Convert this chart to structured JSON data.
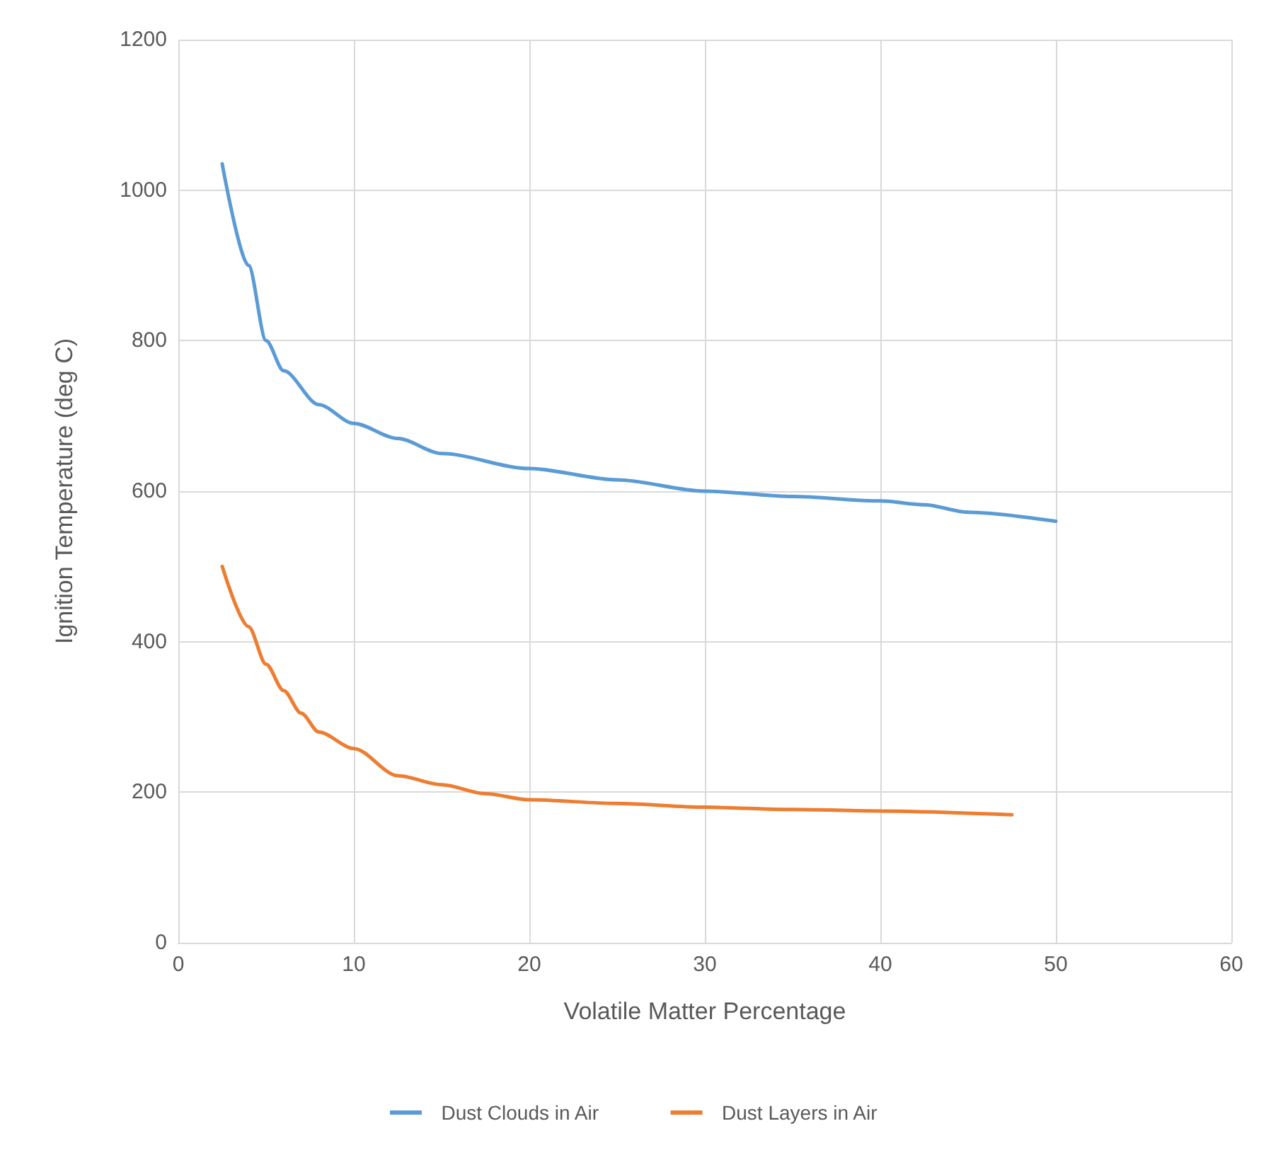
{
  "chart_data": {
    "type": "line",
    "xlabel": "Volatile Matter Percentage",
    "ylabel": "Ignition Temperature (deg C)",
    "xlim": [
      0,
      60
    ],
    "xticks": [
      0,
      10,
      20,
      30,
      40,
      50,
      60
    ],
    "ylim": [
      0,
      1200
    ],
    "yticks": [
      0,
      200,
      400,
      600,
      800,
      1000,
      1200
    ],
    "grid": true,
    "legend": "bottom",
    "marker": "none",
    "line_style": "solid",
    "series": [
      {
        "name": "Dust Clouds in Air",
        "color": "#5b9bd5",
        "x": [
          2.5,
          4,
          5,
          6,
          8,
          10,
          12.5,
          15,
          20,
          25,
          30,
          35,
          40,
          42.5,
          45,
          50
        ],
        "values": [
          1035,
          900,
          800,
          760,
          715,
          690,
          670,
          650,
          630,
          615,
          600,
          593,
          587,
          582,
          572,
          560
        ]
      },
      {
        "name": "Dust Layers in Air",
        "color": "#ed7d31",
        "x": [
          2.5,
          4,
          5,
          6,
          7,
          8,
          10,
          12.5,
          15,
          17.5,
          20,
          25,
          30,
          35,
          40,
          47.5
        ],
        "values": [
          500,
          420,
          370,
          335,
          305,
          280,
          258,
          222,
          210,
          198,
          190,
          185,
          180,
          177,
          175,
          170
        ]
      }
    ]
  }
}
